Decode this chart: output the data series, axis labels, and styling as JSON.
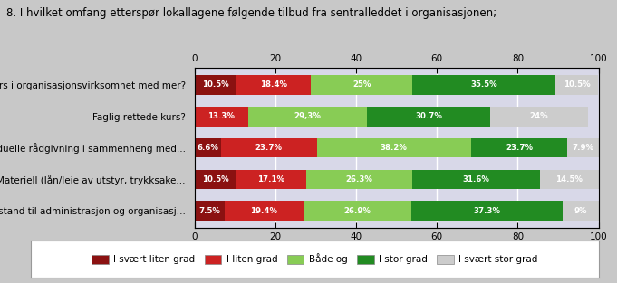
{
  "title": "8. I hvilket omfang etterspør lokallagene følgende tilbud fra sentralleddet i organisasjonen;",
  "categories": [
    "Kurs i organisasjonsvirksomhet med mer?",
    "Faglig rettede kurs?",
    "Individuelle rådgivning i sammenheng med...",
    "Materiell (lån/leie av utstyr, trykksake...",
    "Bistand til administrasjon og organisasj..."
  ],
  "series": [
    {
      "name": "I svært liten grad",
      "color": "#8B1111",
      "values": [
        10.5,
        0.0,
        6.6,
        10.5,
        7.5
      ],
      "labels": [
        "10.5%",
        "",
        "6.6%",
        "10.5%",
        "7.5%"
      ]
    },
    {
      "name": "I liten grad",
      "color": "#CC2222",
      "values": [
        18.4,
        13.3,
        23.7,
        17.1,
        19.4
      ],
      "labels": [
        "18.4%",
        "13.3%",
        "23.7%",
        "17.1%",
        "19.4%"
      ]
    },
    {
      "name": "Både og",
      "color": "#88CC55",
      "values": [
        25.0,
        29.3,
        38.2,
        26.3,
        26.9
      ],
      "labels": [
        "25%",
        "29,3%",
        "38.2%",
        "26.3%",
        "26.9%"
      ]
    },
    {
      "name": "I stor grad",
      "color": "#228B22",
      "values": [
        35.5,
        30.7,
        23.7,
        31.6,
        37.3
      ],
      "labels": [
        "35.5%",
        "30.7%",
        "23.7%",
        "31.6%",
        "37.3%"
      ]
    },
    {
      "name": "I svært stor grad",
      "color": "#CCCCCC",
      "values": [
        10.5,
        24.0,
        7.9,
        14.5,
        9.0
      ],
      "labels": [
        "10.5%",
        "24%",
        "7.9%",
        "14.5%",
        "9%"
      ]
    }
  ],
  "xlim": [
    0,
    100
  ],
  "xticks": [
    0,
    20,
    40,
    60,
    80,
    100
  ],
  "background_color": "#C8C8C8",
  "plot_bg_color": "#D8D8E8",
  "title_fontsize": 8.5,
  "label_fontsize": 6.2,
  "ylabel_fontsize": 7.5,
  "legend_fontsize": 7.5
}
